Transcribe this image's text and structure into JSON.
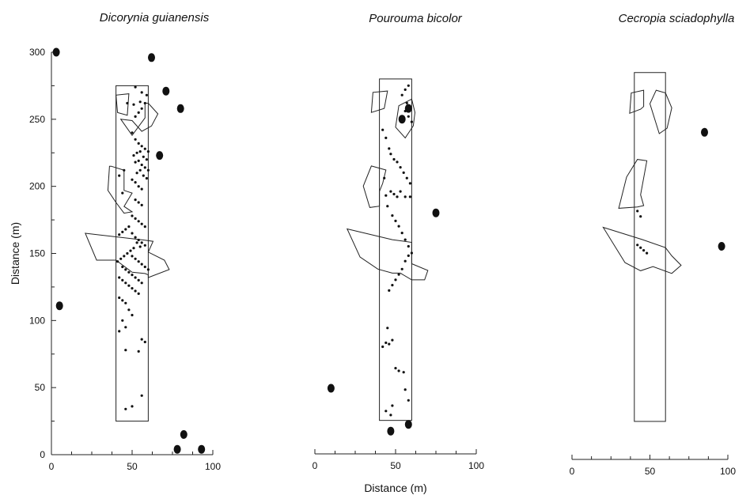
{
  "chart_data": [
    {
      "type": "scatter",
      "title": "Dicorynia guianensis",
      "xlabel": "",
      "ylabel": "Distance (m)",
      "xlim": [
        0,
        100
      ],
      "ylim": [
        0,
        300
      ],
      "xticks": [
        "0",
        "50",
        "100"
      ],
      "yticks": [
        "0",
        "50",
        "100",
        "150",
        "200",
        "250",
        "300"
      ],
      "plot_rect": {
        "x": [
          40,
          60
        ],
        "y": [
          25,
          275
        ]
      },
      "gaps": [
        [
          [
            41,
            255
          ],
          [
            40,
            268
          ],
          [
            48,
            269
          ],
          [
            47,
            253
          ]
        ],
        [
          [
            43,
            250
          ],
          [
            50,
            238
          ],
          [
            58,
            251
          ],
          [
            58,
            262
          ],
          [
            60,
            262
          ],
          [
            66,
            254
          ],
          [
            62,
            245
          ],
          [
            56,
            241
          ],
          [
            50,
            249
          ]
        ],
        [
          [
            37,
            215
          ],
          [
            45,
            212
          ],
          [
            45,
            197
          ],
          [
            50,
            195
          ],
          [
            45,
            185
          ],
          [
            50,
            181
          ],
          [
            45,
            180
          ],
          [
            40,
            188
          ],
          [
            35,
            197
          ],
          [
            36,
            215
          ]
        ],
        [
          [
            21,
            165
          ],
          [
            57,
            160
          ],
          [
            63,
            159
          ],
          [
            60,
            151
          ],
          [
            70,
            145
          ],
          [
            73,
            138
          ],
          [
            60,
            132
          ],
          [
            60,
            134
          ],
          [
            58,
            135
          ],
          [
            50,
            136
          ],
          [
            40,
            145
          ],
          [
            28,
            145
          ],
          [
            21,
            165
          ]
        ]
      ],
      "seedlings": [
        [
          52,
          274
        ],
        [
          56,
          270
        ],
        [
          59,
          268
        ],
        [
          58,
          262
        ],
        [
          55,
          263
        ],
        [
          51,
          261
        ],
        [
          47,
          262
        ],
        [
          56,
          258
        ],
        [
          54,
          255
        ],
        [
          52,
          252
        ],
        [
          50,
          240
        ],
        [
          52,
          235
        ],
        [
          54,
          232
        ],
        [
          56,
          230
        ],
        [
          58,
          228
        ],
        [
          60,
          226
        ],
        [
          55,
          226
        ],
        [
          53,
          225
        ],
        [
          51,
          223
        ],
        [
          57,
          222
        ],
        [
          59,
          220
        ],
        [
          54,
          219
        ],
        [
          52,
          218
        ],
        [
          56,
          216
        ],
        [
          58,
          214
        ],
        [
          60,
          212
        ],
        [
          55,
          212
        ],
        [
          53,
          210
        ],
        [
          57,
          208
        ],
        [
          59,
          206
        ],
        [
          50,
          205
        ],
        [
          52,
          203
        ],
        [
          54,
          200
        ],
        [
          56,
          198
        ],
        [
          45,
          212
        ],
        [
          42,
          208
        ],
        [
          44,
          195
        ],
        [
          52,
          190
        ],
        [
          54,
          188
        ],
        [
          56,
          186
        ],
        [
          50,
          178
        ],
        [
          52,
          176
        ],
        [
          54,
          174
        ],
        [
          56,
          172
        ],
        [
          58,
          170
        ],
        [
          48,
          170
        ],
        [
          46,
          168
        ],
        [
          44,
          166
        ],
        [
          42,
          164
        ],
        [
          50,
          165
        ],
        [
          52,
          162
        ],
        [
          54,
          160
        ],
        [
          56,
          158
        ],
        [
          58,
          156
        ],
        [
          53,
          158
        ],
        [
          55,
          155
        ],
        [
          51,
          154
        ],
        [
          49,
          152
        ],
        [
          47,
          150
        ],
        [
          45,
          148
        ],
        [
          43,
          146
        ],
        [
          41,
          144
        ],
        [
          50,
          148
        ],
        [
          52,
          146
        ],
        [
          54,
          144
        ],
        [
          56,
          142
        ],
        [
          58,
          140
        ],
        [
          60,
          138
        ],
        [
          44,
          140
        ],
        [
          46,
          138
        ],
        [
          48,
          136
        ],
        [
          50,
          134
        ],
        [
          52,
          132
        ],
        [
          54,
          130
        ],
        [
          56,
          128
        ],
        [
          42,
          132
        ],
        [
          44,
          130
        ],
        [
          46,
          128
        ],
        [
          48,
          126
        ],
        [
          50,
          124
        ],
        [
          52,
          122
        ],
        [
          54,
          120
        ],
        [
          42,
          117
        ],
        [
          44,
          115
        ],
        [
          46,
          113
        ],
        [
          48,
          108
        ],
        [
          50,
          104
        ],
        [
          44,
          100
        ],
        [
          46,
          95
        ],
        [
          42,
          92
        ],
        [
          56,
          86
        ],
        [
          58,
          84
        ],
        [
          54,
          77
        ],
        [
          46,
          78
        ],
        [
          56,
          44
        ],
        [
          50,
          36
        ],
        [
          46,
          34
        ]
      ],
      "adults": [
        [
          3,
          300
        ],
        [
          62,
          296
        ],
        [
          71,
          271
        ],
        [
          80,
          258
        ],
        [
          67,
          223
        ],
        [
          5,
          111
        ],
        [
          82,
          15
        ],
        [
          78,
          4
        ],
        [
          93,
          4
        ]
      ]
    },
    {
      "type": "scatter",
      "title": "Pourouma bicolor",
      "xlabel": "Distance (m)",
      "ylabel": "",
      "xlim": [
        0,
        100
      ],
      "ylim": [
        0,
        300
      ],
      "xticks": [
        "0",
        "50",
        "100"
      ],
      "yticks": [],
      "plot_rect": {
        "x": [
          40,
          60
        ],
        "y": [
          25,
          280
        ]
      },
      "gaps": [
        [
          [
            35,
            255
          ],
          [
            36,
            270
          ],
          [
            45,
            271
          ],
          [
            43,
            258
          ],
          [
            35,
            255
          ]
        ],
        [
          [
            50,
            244
          ],
          [
            56,
            236
          ],
          [
            61,
            245
          ],
          [
            62,
            255
          ],
          [
            60,
            265
          ],
          [
            52,
            260
          ],
          [
            50,
            244
          ]
        ],
        [
          [
            30,
            200
          ],
          [
            35,
            215
          ],
          [
            44,
            212
          ],
          [
            42,
            202
          ],
          [
            40,
            196
          ],
          [
            40,
            185
          ],
          [
            34,
            184
          ],
          [
            30,
            200
          ]
        ],
        [
          [
            20,
            168
          ],
          [
            48,
            160
          ],
          [
            60,
            158
          ],
          [
            60,
            142
          ],
          [
            70,
            137
          ],
          [
            68,
            130
          ],
          [
            60,
            130
          ],
          [
            53,
            135
          ],
          [
            48,
            135
          ],
          [
            39,
            138
          ],
          [
            28,
            147
          ],
          [
            20,
            168
          ]
        ]
      ],
      "seedlings": [
        [
          58,
          275
        ],
        [
          56,
          272
        ],
        [
          54,
          268
        ],
        [
          57,
          262
        ],
        [
          56,
          256
        ],
        [
          58,
          252
        ],
        [
          60,
          248
        ],
        [
          42,
          242
        ],
        [
          44,
          236
        ],
        [
          46,
          228
        ],
        [
          47,
          224
        ],
        [
          49,
          220
        ],
        [
          51,
          218
        ],
        [
          53,
          214
        ],
        [
          55,
          210
        ],
        [
          57,
          206
        ],
        [
          59,
          202
        ],
        [
          43,
          206
        ],
        [
          47,
          196
        ],
        [
          49,
          194
        ],
        [
          51,
          192
        ],
        [
          53,
          196
        ],
        [
          56,
          192
        ],
        [
          59,
          192
        ],
        [
          44,
          193
        ],
        [
          45,
          185
        ],
        [
          48,
          178
        ],
        [
          50,
          174
        ],
        [
          52,
          170
        ],
        [
          54,
          165
        ],
        [
          56,
          160
        ],
        [
          58,
          155
        ],
        [
          60,
          150
        ],
        [
          58,
          148
        ],
        [
          56,
          144
        ],
        [
          54,
          138
        ],
        [
          52,
          134
        ],
        [
          50,
          130
        ],
        [
          48,
          126
        ],
        [
          46,
          122
        ],
        [
          45,
          94
        ],
        [
          44,
          83
        ],
        [
          42,
          80
        ],
        [
          46,
          82
        ],
        [
          48,
          85
        ],
        [
          50,
          64
        ],
        [
          52,
          62
        ],
        [
          55,
          61
        ],
        [
          56,
          48
        ],
        [
          58,
          40
        ],
        [
          48,
          36
        ],
        [
          44,
          32
        ],
        [
          47,
          29
        ]
      ],
      "adults": [
        [
          58,
          258
        ],
        [
          54,
          250
        ],
        [
          75,
          180
        ],
        [
          10,
          49
        ],
        [
          47,
          17
        ],
        [
          58,
          22
        ]
      ]
    },
    {
      "type": "scatter",
      "title": "Cecropia sciadophylla",
      "xlabel": "",
      "ylabel": "",
      "xlim": [
        0,
        100
      ],
      "ylim": [
        0,
        300
      ],
      "xticks": [
        "0",
        "50",
        "100"
      ],
      "yticks": [],
      "plot_rect": {
        "x": [
          40,
          60
        ],
        "y": [
          28,
          285
        ]
      },
      "gaps": [
        [
          [
            37,
            255
          ],
          [
            38,
            270
          ],
          [
            46,
            272
          ],
          [
            46,
            260
          ],
          [
            44,
            258
          ],
          [
            37,
            255
          ]
        ],
        [
          [
            50,
            262
          ],
          [
            54,
            272
          ],
          [
            60,
            270
          ],
          [
            64,
            259
          ],
          [
            61,
            244
          ],
          [
            56,
            240
          ],
          [
            50,
            262
          ]
        ],
        [
          [
            30,
            185
          ],
          [
            35,
            208
          ],
          [
            42,
            221
          ],
          [
            48,
            220
          ],
          [
            44,
            195
          ],
          [
            46,
            187
          ],
          [
            42,
            186
          ],
          [
            30,
            185
          ]
        ],
        [
          [
            20,
            171
          ],
          [
            45,
            162
          ],
          [
            60,
            156
          ],
          [
            64,
            150
          ],
          [
            70,
            143
          ],
          [
            64,
            137
          ],
          [
            52,
            142
          ],
          [
            44,
            139
          ],
          [
            34,
            145
          ],
          [
            20,
            171
          ]
        ]
      ],
      "seedlings": [
        [
          42,
          183
        ],
        [
          44,
          179
        ],
        [
          42,
          158
        ],
        [
          44,
          156
        ],
        [
          46,
          154
        ],
        [
          48,
          152
        ]
      ],
      "adults": [
        [
          85,
          241
        ],
        [
          96,
          157
        ]
      ]
    }
  ]
}
